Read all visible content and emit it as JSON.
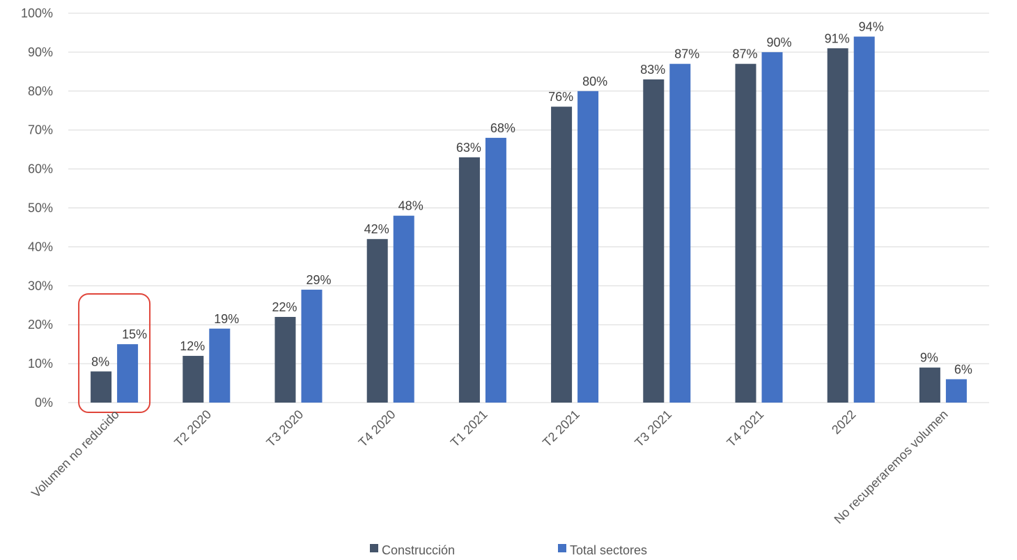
{
  "chart_data": {
    "type": "bar",
    "categories": [
      "Volumen no reducido",
      "T2 2020",
      "T3 2020",
      "T4 2020",
      "T1 2021",
      "T2 2021",
      "T3 2021",
      "T4 2021",
      "2022",
      "No recuperaremos volumen"
    ],
    "series": [
      {
        "name": "Construcción",
        "color": "#44546a",
        "values": [
          8,
          12,
          22,
          42,
          63,
          76,
          83,
          87,
          91,
          9
        ],
        "labels": [
          "8%",
          "12%",
          "22%",
          "42%",
          "63%",
          "76%",
          "83%",
          "87%",
          "91%",
          "9%"
        ]
      },
      {
        "name": "Total sectores",
        "color": "#4472c4",
        "values": [
          15,
          19,
          29,
          48,
          68,
          80,
          87,
          90,
          94,
          6
        ],
        "labels": [
          "15%",
          "19%",
          "29%",
          "48%",
          "68%",
          "80%",
          "87%",
          "90%",
          "94%",
          "6%"
        ]
      }
    ],
    "yticks": [
      "0%",
      "10%",
      "20%",
      "30%",
      "40%",
      "50%",
      "60%",
      "70%",
      "80%",
      "90%",
      "100%"
    ],
    "ylim": [
      0,
      100
    ],
    "grid": true,
    "legend": "bottom-center",
    "highlight": {
      "category": "Volumen no reducido",
      "color": "#e0453a"
    }
  }
}
